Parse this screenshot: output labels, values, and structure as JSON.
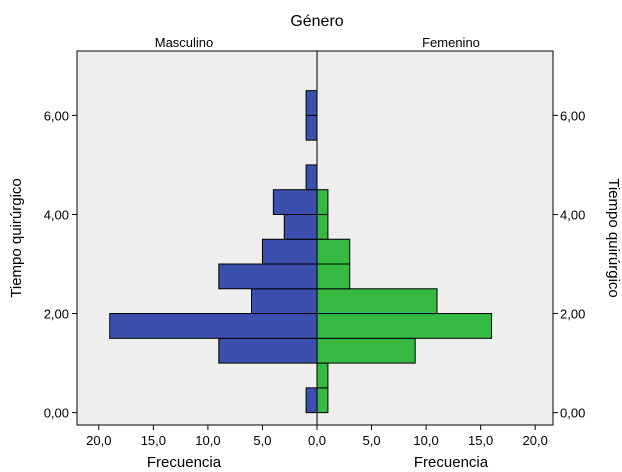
{
  "chart_data": {
    "type": "bar",
    "orientation": "horizontal-back-to-back",
    "title": "Género",
    "panels": [
      "Masculino",
      "Femenino"
    ],
    "ylabel": "Tiempo quirúrgico",
    "xlabel": "Frecuencia",
    "ylim": [
      -0.25,
      7.3
    ],
    "xlim": [
      0,
      22
    ],
    "yticks": [
      "0,00",
      "2,00",
      "4,00",
      "6,00"
    ],
    "ytick_values": [
      0,
      2,
      4,
      6
    ],
    "xticks": [
      "20,0",
      "15,0",
      "10,0",
      "5,0",
      "0,0",
      "5,0",
      "10,0",
      "15,0",
      "20,0"
    ],
    "bin_width": 0.5,
    "series": [
      {
        "name": "Masculino",
        "color": "#3a4fae",
        "bins": [
          {
            "y": 0.25,
            "value": 1
          },
          {
            "y": 1.25,
            "value": 9
          },
          {
            "y": 1.75,
            "value": 19
          },
          {
            "y": 2.25,
            "value": 6
          },
          {
            "y": 2.75,
            "value": 9
          },
          {
            "y": 3.25,
            "value": 5
          },
          {
            "y": 3.75,
            "value": 3
          },
          {
            "y": 4.25,
            "value": 4
          },
          {
            "y": 4.75,
            "value": 1
          },
          {
            "y": 5.75,
            "value": 1
          },
          {
            "y": 6.25,
            "value": 1
          }
        ]
      },
      {
        "name": "Femenino",
        "color": "#35b940",
        "bins": [
          {
            "y": 0.25,
            "value": 1
          },
          {
            "y": 0.75,
            "value": 1
          },
          {
            "y": 1.25,
            "value": 9
          },
          {
            "y": 1.75,
            "value": 16
          },
          {
            "y": 2.25,
            "value": 11
          },
          {
            "y": 2.75,
            "value": 3
          },
          {
            "y": 3.25,
            "value": 3
          },
          {
            "y": 3.75,
            "value": 1
          },
          {
            "y": 4.25,
            "value": 1
          }
        ]
      }
    ],
    "plot_background": "#eeeeee",
    "grid": false
  }
}
